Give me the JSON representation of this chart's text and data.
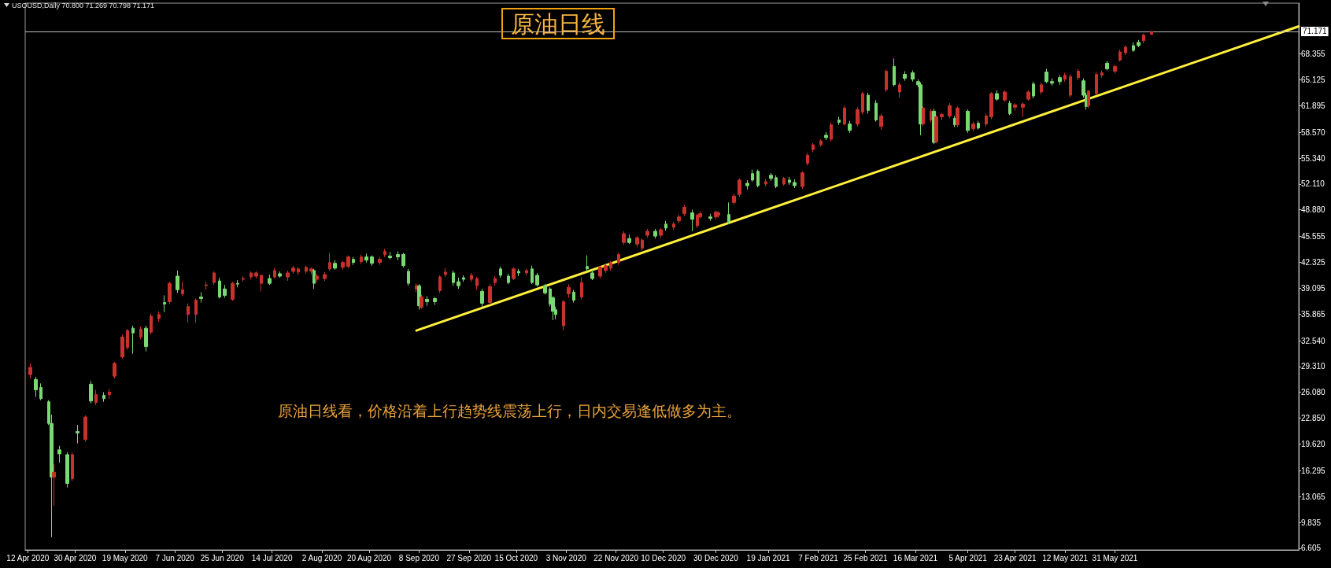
{
  "chart_data": {
    "type": "candlestick",
    "title": "原油日线",
    "subtitle": "USOUSD,Daily 70.800 71.269 70.798 71.171",
    "annotations": [
      "原油日线看，价格沿着上行趋势线震荡上行，日内交易逢低做多为主。"
    ],
    "x": [
      "2020-04-13",
      "2020-04-15",
      "2020-04-17",
      "2020-04-20",
      "2020-04-21",
      "2020-04-22",
      "2020-04-24",
      "2020-04-27",
      "2020-04-29",
      "2020-05-01",
      "2020-05-04",
      "2020-05-06",
      "2020-05-08",
      "2020-05-11",
      "2020-05-13",
      "2020-05-15",
      "2020-05-18",
      "2020-05-20",
      "2020-05-22",
      "2020-05-25",
      "2020-05-27",
      "2020-05-29",
      "2020-06-01",
      "2020-06-03",
      "2020-06-05",
      "2020-06-08",
      "2020-06-10",
      "2020-06-12",
      "2020-06-15",
      "2020-06-17",
      "2020-06-19",
      "2020-06-22",
      "2020-06-24",
      "2020-06-26",
      "2020-06-29",
      "2020-07-01",
      "2020-07-03",
      "2020-07-06",
      "2020-07-08",
      "2020-07-10",
      "2020-07-13",
      "2020-07-15",
      "2020-07-17",
      "2020-07-20",
      "2020-07-22",
      "2020-07-24",
      "2020-07-27",
      "2020-07-29",
      "2020-07-30",
      "2020-07-31",
      "2020-08-03",
      "2020-08-05",
      "2020-08-07",
      "2020-08-10",
      "2020-08-12",
      "2020-08-14",
      "2020-08-17",
      "2020-08-19",
      "2020-08-21",
      "2020-08-24",
      "2020-08-26",
      "2020-08-28",
      "2020-08-31",
      "2020-09-02",
      "2020-09-04",
      "2020-09-07",
      "2020-09-08",
      "2020-09-09",
      "2020-09-11",
      "2020-09-14",
      "2020-09-16",
      "2020-09-18",
      "2020-09-21",
      "2020-09-23",
      "2020-09-25",
      "2020-09-28",
      "2020-09-30",
      "2020-10-02",
      "2020-10-05",
      "2020-10-07",
      "2020-10-09",
      "2020-10-12",
      "2020-10-14",
      "2020-10-16",
      "2020-10-19",
      "2020-10-21",
      "2020-10-23",
      "2020-10-26",
      "2020-10-28",
      "2020-10-29",
      "2020-10-30",
      "2020-11-02",
      "2020-11-04",
      "2020-11-06",
      "2020-11-09",
      "2020-11-11",
      "2020-11-13",
      "2020-11-16",
      "2020-11-18",
      "2020-11-20",
      "2020-11-23",
      "2020-11-25",
      "2020-11-27",
      "2020-11-30",
      "2020-12-02",
      "2020-12-04",
      "2020-12-07",
      "2020-12-09",
      "2020-12-11",
      "2020-12-14",
      "2020-12-16",
      "2020-12-18",
      "2020-12-21",
      "2020-12-23",
      "2020-12-24",
      "2020-12-28",
      "2020-12-30",
      "2020-12-31",
      "2021-01-04",
      "2021-01-06",
      "2021-01-08",
      "2021-01-11",
      "2021-01-13",
      "2021-01-15",
      "2021-01-18",
      "2021-01-20",
      "2021-01-22",
      "2021-01-25",
      "2021-01-27",
      "2021-01-29",
      "2021-02-01",
      "2021-02-03",
      "2021-02-05",
      "2021-02-08",
      "2021-02-10",
      "2021-02-12",
      "2021-02-15",
      "2021-02-17",
      "2021-02-19",
      "2021-02-22",
      "2021-02-24",
      "2021-02-26",
      "2021-03-01",
      "2021-03-03",
      "2021-03-05",
      "2021-03-08",
      "2021-03-10",
      "2021-03-12",
      "2021-03-15",
      "2021-03-17",
      "2021-03-18",
      "2021-03-19",
      "2021-03-22",
      "2021-03-23",
      "2021-03-24",
      "2021-03-26",
      "2021-03-29",
      "2021-03-31",
      "2021-04-01",
      "2021-04-05",
      "2021-04-07",
      "2021-04-09",
      "2021-04-12",
      "2021-04-14",
      "2021-04-16",
      "2021-04-19",
      "2021-04-21",
      "2021-04-23",
      "2021-04-26",
      "2021-04-28",
      "2021-04-30",
      "2021-05-03",
      "2021-05-05",
      "2021-05-07",
      "2021-05-10",
      "2021-05-12",
      "2021-05-14",
      "2021-05-17",
      "2021-05-19",
      "2021-05-20",
      "2021-05-21",
      "2021-05-24",
      "2021-05-26",
      "2021-05-28",
      "2021-05-31",
      "2021-06-02",
      "2021-06-04",
      "2021-06-07",
      "2021-06-09",
      "2021-06-11",
      "2021-06-14"
    ],
    "ohlc": [
      [
        28.3,
        29.7,
        27.8,
        29.2
      ],
      [
        27.7,
        28.0,
        25.5,
        26.4
      ],
      [
        26.7,
        27.2,
        25.1,
        25.3
      ],
      [
        24.9,
        25.1,
        22.0,
        22.2
      ],
      [
        22.2,
        23.3,
        8.0,
        15.5
      ],
      [
        15.5,
        17.1,
        11.9,
        16.1
      ],
      [
        18.9,
        19.4,
        17.3,
        18.4
      ],
      [
        18.3,
        18.6,
        14.2,
        14.7
      ],
      [
        15.3,
        18.6,
        15.0,
        18.3
      ],
      [
        21.2,
        22.0,
        19.7,
        21.0
      ],
      [
        20.2,
        23.2,
        19.9,
        23.0
      ],
      [
        27.1,
        27.5,
        24.7,
        25.0
      ],
      [
        24.8,
        26.4,
        24.5,
        25.8
      ],
      [
        25.7,
        26.1,
        24.9,
        25.3
      ],
      [
        25.8,
        26.5,
        25.3,
        26.1
      ],
      [
        28.1,
        29.9,
        27.8,
        29.7
      ],
      [
        30.5,
        33.3,
        30.3,
        33.0
      ],
      [
        31.7,
        34.0,
        31.4,
        33.8
      ],
      [
        34.1,
        34.4,
        30.9,
        33.5
      ],
      [
        33.0,
        34.3,
        32.7,
        34.0
      ],
      [
        34.1,
        34.4,
        31.2,
        31.8
      ],
      [
        33.6,
        35.9,
        33.3,
        35.6
      ],
      [
        35.3,
        36.2,
        34.9,
        35.8
      ],
      [
        37.3,
        38.2,
        36.1,
        37.1
      ],
      [
        37.4,
        39.9,
        37.1,
        39.7
      ],
      [
        40.6,
        41.3,
        38.5,
        38.9
      ],
      [
        38.4,
        39.9,
        38.1,
        38.9
      ],
      [
        35.8,
        37.2,
        34.8,
        36.8
      ],
      [
        35.8,
        37.8,
        34.8,
        37.6
      ],
      [
        38.0,
        38.6,
        37.3,
        37.8
      ],
      [
        39.4,
        39.9,
        38.9,
        39.5
      ],
      [
        39.8,
        41.2,
        39.5,
        41.0
      ],
      [
        40.0,
        40.4,
        37.8,
        38.0
      ],
      [
        39.0,
        39.5,
        37.9,
        38.2
      ],
      [
        37.7,
        39.9,
        37.5,
        39.7
      ],
      [
        39.7,
        40.1,
        39.2,
        39.6
      ],
      [
        40.2,
        40.6,
        39.9,
        40.3
      ],
      [
        40.5,
        41.2,
        40.2,
        41.0
      ],
      [
        40.6,
        41.2,
        40.3,
        41.0
      ],
      [
        39.7,
        40.8,
        38.7,
        40.7
      ],
      [
        40.3,
        40.8,
        39.5,
        39.7
      ],
      [
        40.5,
        41.6,
        40.3,
        41.3
      ],
      [
        40.9,
        41.2,
        40.4,
        40.6
      ],
      [
        40.5,
        41.3,
        40.0,
        41.0
      ],
      [
        41.2,
        41.9,
        40.9,
        41.6
      ],
      [
        41.1,
        41.7,
        40.7,
        41.5
      ],
      [
        41.2,
        41.9,
        40.9,
        41.7
      ],
      [
        41.2,
        41.7,
        40.8,
        41.5
      ],
      [
        41.3,
        41.5,
        39.0,
        39.7
      ],
      [
        40.2,
        40.9,
        39.8,
        40.6
      ],
      [
        40.3,
        41.1,
        40.0,
        40.8
      ],
      [
        41.5,
        43.5,
        41.3,
        42.3
      ],
      [
        42.2,
        42.6,
        41.4,
        41.6
      ],
      [
        41.7,
        42.5,
        41.4,
        42.3
      ],
      [
        41.8,
        43.2,
        41.6,
        43.0
      ],
      [
        42.7,
        43.0,
        42.0,
        42.3
      ],
      [
        42.4,
        43.3,
        42.1,
        43.0
      ],
      [
        43.0,
        43.4,
        42.3,
        42.6
      ],
      [
        43.0,
        43.2,
        41.9,
        42.2
      ],
      [
        42.3,
        43.0,
        42.0,
        42.7
      ],
      [
        43.3,
        44.0,
        43.0,
        43.7
      ],
      [
        43.1,
        43.6,
        42.7,
        42.9
      ],
      [
        43.3,
        43.7,
        42.6,
        43.0
      ],
      [
        43.3,
        43.5,
        41.7,
        41.9
      ],
      [
        41.2,
        41.5,
        39.4,
        39.7
      ],
      [
        39.0,
        39.7,
        38.6,
        39.4
      ],
      [
        39.4,
        39.6,
        36.4,
        36.9
      ],
      [
        36.7,
        38.3,
        36.5,
        38.0
      ],
      [
        37.7,
        38.1,
        36.9,
        37.4
      ],
      [
        37.8,
        38.0,
        37.0,
        37.4
      ],
      [
        38.8,
        40.7,
        38.5,
        40.5
      ],
      [
        40.8,
        41.6,
        40.5,
        41.1
      ],
      [
        41.0,
        41.3,
        39.4,
        39.8
      ],
      [
        39.9,
        40.4,
        39.0,
        39.4
      ],
      [
        40.4,
        40.7,
        39.9,
        40.2
      ],
      [
        40.2,
        41.0,
        39.9,
        40.7
      ],
      [
        39.4,
        40.5,
        38.9,
        40.3
      ],
      [
        38.7,
        39.0,
        36.8,
        37.2
      ],
      [
        37.3,
        39.6,
        37.0,
        39.3
      ],
      [
        39.8,
        40.6,
        39.4,
        40.3
      ],
      [
        41.5,
        41.8,
        40.4,
        40.7
      ],
      [
        40.6,
        40.9,
        39.6,
        39.8
      ],
      [
        40.3,
        41.7,
        40.1,
        41.5
      ],
      [
        41.2,
        41.5,
        40.6,
        41.0
      ],
      [
        41.0,
        41.5,
        40.7,
        41.3
      ],
      [
        41.5,
        41.9,
        39.6,
        39.8
      ],
      [
        40.7,
        41.0,
        39.3,
        39.5
      ],
      [
        39.4,
        39.6,
        38.3,
        38.5
      ],
      [
        39.0,
        39.2,
        36.8,
        37.1
      ],
      [
        37.9,
        38.1,
        35.1,
        36.2
      ],
      [
        36.4,
        36.8,
        35.2,
        35.8
      ],
      [
        34.4,
        37.6,
        33.8,
        37.4
      ],
      [
        38.4,
        39.6,
        37.9,
        39.2
      ],
      [
        38.6,
        38.9,
        37.3,
        37.6
      ],
      [
        38.0,
        40.5,
        37.7,
        39.8
      ],
      [
        41.8,
        43.2,
        41.2,
        41.5
      ],
      [
        41.0,
        41.4,
        40.1,
        40.3
      ],
      [
        40.6,
        41.9,
        40.3,
        41.7
      ],
      [
        41.3,
        42.2,
        41.0,
        41.9
      ],
      [
        41.6,
        42.5,
        41.3,
        42.3
      ],
      [
        42.3,
        43.5,
        42.0,
        43.3
      ],
      [
        44.8,
        46.2,
        44.5,
        45.9
      ],
      [
        45.3,
        45.8,
        44.6,
        44.8
      ],
      [
        44.6,
        45.6,
        44.2,
        45.4
      ],
      [
        44.1,
        45.3,
        43.8,
        45.1
      ],
      [
        45.7,
        46.5,
        45.4,
        46.2
      ],
      [
        46.2,
        46.5,
        45.3,
        45.6
      ],
      [
        45.7,
        46.6,
        45.4,
        46.4
      ],
      [
        47.1,
        47.5,
        46.3,
        46.6
      ],
      [
        46.7,
        47.4,
        46.4,
        47.1
      ],
      [
        47.5,
        48.3,
        47.2,
        48.0
      ],
      [
        48.4,
        49.5,
        48.1,
        49.2
      ],
      [
        48.5,
        48.9,
        46.2,
        47.7
      ],
      [
        46.9,
        48.4,
        46.6,
        48.2
      ],
      [
        48.0,
        48.7,
        47.8,
        48.4
      ],
      [
        48.0,
        48.4,
        47.5,
        47.8
      ],
      [
        48.0,
        48.8,
        47.7,
        48.6
      ],
      [
        48.2,
        48.7,
        47.9,
        48.5
      ],
      [
        48.3,
        49.8,
        47.1,
        47.4
      ],
      [
        49.8,
        50.9,
        49.5,
        50.6
      ],
      [
        50.8,
        52.8,
        50.5,
        52.6
      ],
      [
        52.2,
        52.6,
        51.4,
        51.9
      ],
      [
        53.4,
        53.9,
        52.4,
        52.6
      ],
      [
        53.7,
        53.9,
        51.7,
        51.9
      ],
      [
        52.1,
        52.7,
        51.8,
        52.4
      ],
      [
        53.2,
        53.5,
        52.5,
        52.8
      ],
      [
        52.9,
        53.2,
        51.6,
        51.8
      ],
      [
        52.1,
        53.0,
        51.9,
        52.8
      ],
      [
        52.6,
        53.0,
        52.0,
        52.3
      ],
      [
        52.3,
        52.7,
        51.6,
        51.9
      ],
      [
        51.8,
        53.7,
        51.5,
        53.5
      ],
      [
        54.7,
        56.0,
        54.4,
        55.7
      ],
      [
        56.4,
        57.2,
        56.1,
        57.0
      ],
      [
        57.0,
        57.7,
        56.8,
        57.5
      ],
      [
        58.2,
        58.6,
        57.6,
        57.9
      ],
      [
        57.7,
        59.8,
        57.4,
        59.5
      ],
      [
        60.1,
        60.5,
        59.5,
        59.8
      ],
      [
        59.6,
        61.9,
        59.4,
        61.6
      ],
      [
        59.6,
        60.0,
        58.5,
        58.8
      ],
      [
        59.6,
        61.7,
        59.3,
        61.4
      ],
      [
        61.1,
        63.6,
        60.8,
        63.4
      ],
      [
        63.2,
        63.5,
        60.9,
        61.3
      ],
      [
        62.2,
        62.6,
        59.9,
        60.1
      ],
      [
        59.3,
        60.9,
        58.9,
        60.6
      ],
      [
        63.9,
        66.4,
        63.6,
        66.2
      ],
      [
        66.8,
        67.8,
        64.3,
        64.5
      ],
      [
        63.6,
        64.8,
        62.9,
        64.5
      ],
      [
        65.8,
        66.2,
        65.0,
        65.3
      ],
      [
        66.0,
        66.3,
        64.9,
        65.2
      ],
      [
        64.9,
        65.2,
        64.2,
        64.5
      ],
      [
        64.5,
        64.8,
        58.2,
        59.6
      ],
      [
        59.6,
        61.8,
        59.3,
        61.6
      ],
      [
        60.1,
        61.5,
        59.8,
        61.2
      ],
      [
        61.2,
        61.5,
        57.1,
        57.3
      ],
      [
        57.4,
        60.7,
        57.2,
        60.5
      ],
      [
        60.5,
        61.0,
        60.1,
        60.8
      ],
      [
        60.6,
        62.2,
        60.3,
        61.9
      ],
      [
        60.3,
        60.6,
        59.2,
        59.5
      ],
      [
        59.5,
        61.8,
        59.2,
        61.6
      ],
      [
        61.2,
        61.4,
        58.5,
        58.8
      ],
      [
        59.0,
        59.9,
        58.7,
        59.6
      ],
      [
        59.7,
        60.0,
        58.9,
        59.1
      ],
      [
        59.6,
        60.9,
        59.3,
        60.6
      ],
      [
        60.5,
        63.6,
        60.2,
        63.4
      ],
      [
        63.4,
        63.8,
        62.5,
        62.7
      ],
      [
        62.6,
        63.8,
        62.4,
        63.6
      ],
      [
        62.2,
        62.5,
        60.7,
        60.9
      ],
      [
        61.7,
        62.2,
        61.3,
        62.0
      ],
      [
        61.7,
        62.3,
        60.5,
        62.1
      ],
      [
        62.7,
        63.8,
        62.5,
        63.6
      ],
      [
        64.6,
        64.9,
        62.8,
        63.1
      ],
      [
        63.6,
        64.8,
        63.3,
        64.5
      ],
      [
        66.1,
        66.5,
        64.7,
        64.9
      ],
      [
        64.9,
        65.3,
        64.4,
        64.7
      ],
      [
        65.4,
        65.7,
        64.5,
        64.9
      ],
      [
        65.2,
        66.0,
        64.9,
        65.7
      ],
      [
        63.2,
        65.8,
        62.9,
        65.5
      ],
      [
        65.4,
        66.5,
        65.1,
        66.2
      ],
      [
        65.0,
        65.3,
        62.9,
        63.2
      ],
      [
        63.2,
        63.5,
        61.4,
        61.8
      ],
      [
        61.9,
        63.9,
        61.6,
        63.7
      ],
      [
        63.4,
        66.1,
        63.2,
        65.8
      ],
      [
        65.7,
        66.3,
        65.4,
        66.0
      ],
      [
        67.2,
        67.5,
        66.3,
        66.5
      ],
      [
        66.2,
        67.0,
        65.9,
        66.8
      ],
      [
        67.6,
        68.9,
        67.4,
        68.6
      ],
      [
        68.5,
        69.4,
        68.2,
        69.2
      ],
      [
        69.4,
        69.8,
        68.6,
        68.8
      ],
      [
        69.8,
        70.1,
        69.2,
        69.4
      ],
      [
        70.0,
        70.9,
        69.7,
        70.7
      ],
      [
        70.8,
        71.269,
        70.798,
        71.171
      ]
    ],
    "colors": [
      "#c8322d",
      "#7ad972",
      "#7ad972",
      "#7ad972",
      "#7ad972",
      "#c8322d",
      "#7ad972",
      "#7ad972",
      "#c8322d",
      "#7ad972",
      "#c8322d",
      "#7ad972",
      "#c8322d",
      "#7ad972",
      "#c8322d",
      "#c8322d",
      "#c8322d",
      "#c8322d",
      "#7ad972",
      "#c8322d",
      "#7ad972",
      "#c8322d",
      "#c8322d",
      "#7ad972",
      "#c8322d",
      "#7ad972",
      "#c8322d",
      "#c8322d",
      "#c8322d",
      "#7ad972",
      "#c8322d",
      "#c8322d",
      "#7ad972",
      "#7ad972",
      "#c8322d",
      "#7ad972",
      "#c8322d",
      "#c8322d",
      "#c8322d",
      "#c8322d",
      "#7ad972",
      "#c8322d",
      "#7ad972",
      "#c8322d",
      "#c8322d",
      "#c8322d",
      "#c8322d",
      "#c8322d",
      "#7ad972",
      "#c8322d",
      "#c8322d",
      "#c8322d",
      "#7ad972",
      "#c8322d",
      "#c8322d",
      "#7ad972",
      "#c8322d",
      "#7ad972",
      "#7ad972",
      "#c8322d",
      "#c8322d",
      "#7ad972",
      "#7ad972",
      "#7ad972",
      "#7ad972",
      "#c8322d",
      "#7ad972",
      "#c8322d",
      "#7ad972",
      "#7ad972",
      "#c8322d",
      "#c8322d",
      "#7ad972",
      "#7ad972",
      "#7ad972",
      "#c8322d",
      "#c8322d",
      "#7ad972",
      "#c8322d",
      "#c8322d",
      "#7ad972",
      "#7ad972",
      "#c8322d",
      "#7ad972",
      "#c8322d",
      "#7ad972",
      "#7ad972",
      "#7ad972",
      "#7ad972",
      "#7ad972",
      "#7ad972",
      "#c8322d",
      "#c8322d",
      "#7ad972",
      "#c8322d",
      "#7ad972",
      "#7ad972",
      "#c8322d",
      "#c8322d",
      "#c8322d",
      "#c8322d",
      "#c8322d",
      "#7ad972",
      "#c8322d",
      "#c8322d",
      "#c8322d",
      "#7ad972",
      "#c8322d",
      "#7ad972",
      "#c8322d",
      "#c8322d",
      "#c8322d",
      "#7ad972",
      "#c8322d",
      "#c8322d",
      "#7ad972",
      "#c8322d",
      "#c8322d",
      "#7ad972",
      "#c8322d",
      "#c8322d",
      "#7ad972",
      "#7ad972",
      "#7ad972",
      "#c8322d",
      "#7ad972",
      "#7ad972",
      "#c8322d",
      "#7ad972",
      "#7ad972",
      "#c8322d",
      "#c8322d",
      "#c8322d",
      "#c8322d",
      "#7ad972",
      "#c8322d",
      "#7ad972",
      "#c8322d",
      "#7ad972",
      "#c8322d",
      "#c8322d",
      "#7ad972",
      "#7ad972",
      "#c8322d",
      "#c8322d",
      "#7ad972",
      "#c8322d",
      "#7ad972",
      "#7ad972",
      "#7ad972",
      "#7ad972",
      "#c8322d",
      "#c8322d",
      "#7ad972",
      "#c8322d",
      "#c8322d",
      "#c8322d",
      "#7ad972",
      "#c8322d",
      "#7ad972",
      "#c8322d",
      "#7ad972",
      "#c8322d",
      "#c8322d",
      "#7ad972",
      "#c8322d",
      "#7ad972",
      "#c8322d",
      "#c8322d",
      "#c8322d",
      "#7ad972",
      "#c8322d",
      "#7ad972",
      "#7ad972",
      "#7ad972",
      "#c8322d",
      "#c8322d",
      "#c8322d",
      "#7ad972",
      "#7ad972",
      "#c8322d",
      "#c8322d",
      "#c8322d",
      "#7ad972",
      "#c8322d",
      "#c8322d",
      "#c8322d",
      "#7ad972",
      "#7ad972",
      "#c8322d",
      "#c8322d"
    ],
    "series": [
      {
        "type": "line",
        "color": "#fff03c",
        "x": [
          "2020-09-07",
          "2021-08-09"
        ],
        "values": [
          33.8,
          71.8
        ]
      }
    ],
    "ref_lines": [
      {
        "axis": "y",
        "value": 71.171,
        "label": "71.171",
        "color": "#c0c0c0",
        "line_style": "solid"
      }
    ],
    "xlim": [
      "2020-04-11",
      "2021-08-09"
    ],
    "xticks": [
      {
        "value": "2020-04-12",
        "label": "12 Apr 2020"
      },
      {
        "value": "2020-04-30",
        "label": "30 Apr 2020"
      },
      {
        "value": "2020-05-19",
        "label": "19 May 2020"
      },
      {
        "value": "2020-06-07",
        "label": "7 Jun 2020"
      },
      {
        "value": "2020-06-25",
        "label": "25 Jun 2020"
      },
      {
        "value": "2020-07-14",
        "label": "14 Jul 2020"
      },
      {
        "value": "2020-08-02",
        "label": "2 Aug 2020"
      },
      {
        "value": "2020-08-20",
        "label": "20 Aug 2020"
      },
      {
        "value": "2020-09-08",
        "label": "8 Sep 2020"
      },
      {
        "value": "2020-09-27",
        "label": "27 Sep 2020"
      },
      {
        "value": "2020-10-15",
        "label": "15 Oct 2020"
      },
      {
        "value": "2020-11-03",
        "label": "3 Nov 2020"
      },
      {
        "value": "2020-11-22",
        "label": "22 Nov 2020"
      },
      {
        "value": "2020-12-10",
        "label": "10 Dec 2020"
      },
      {
        "value": "2020-12-30",
        "label": "30 Dec 2020"
      },
      {
        "value": "2021-01-19",
        "label": "19 Jan 2021"
      },
      {
        "value": "2021-02-07",
        "label": "7 Feb 2021"
      },
      {
        "value": "2021-02-25",
        "label": "25 Feb 2021"
      },
      {
        "value": "2021-03-16",
        "label": "16 Mar 2021"
      },
      {
        "value": "2021-04-05",
        "label": "5 Apr 2021"
      },
      {
        "value": "2021-04-23",
        "label": "23 Apr 2021"
      },
      {
        "value": "2021-05-12",
        "label": "12 May 2021"
      },
      {
        "value": "2021-05-31",
        "label": "31 May 2021"
      }
    ],
    "ylim": [
      6.4,
      74.7
    ],
    "yticks": [
      6.605,
      9.835,
      13.065,
      16.295,
      {
        "value": 19.62,
        "label": "19.620"
      },
      {
        "value": 22.85,
        "label": "22.850"
      },
      {
        "value": 26.08,
        "label": "26.080"
      },
      {
        "value": 29.31,
        "label": "29.310"
      },
      {
        "value": 32.54,
        "label": "32.540"
      },
      35.865,
      39.095,
      42.325,
      45.555,
      {
        "value": 48.88,
        "label": "48.880"
      },
      {
        "value": 52.11,
        "label": "52.110"
      },
      {
        "value": 55.34,
        "label": "55.340"
      },
      {
        "value": 58.57,
        "label": "58.570"
      },
      61.895,
      65.125,
      68.355
    ],
    "grid": false
  }
}
